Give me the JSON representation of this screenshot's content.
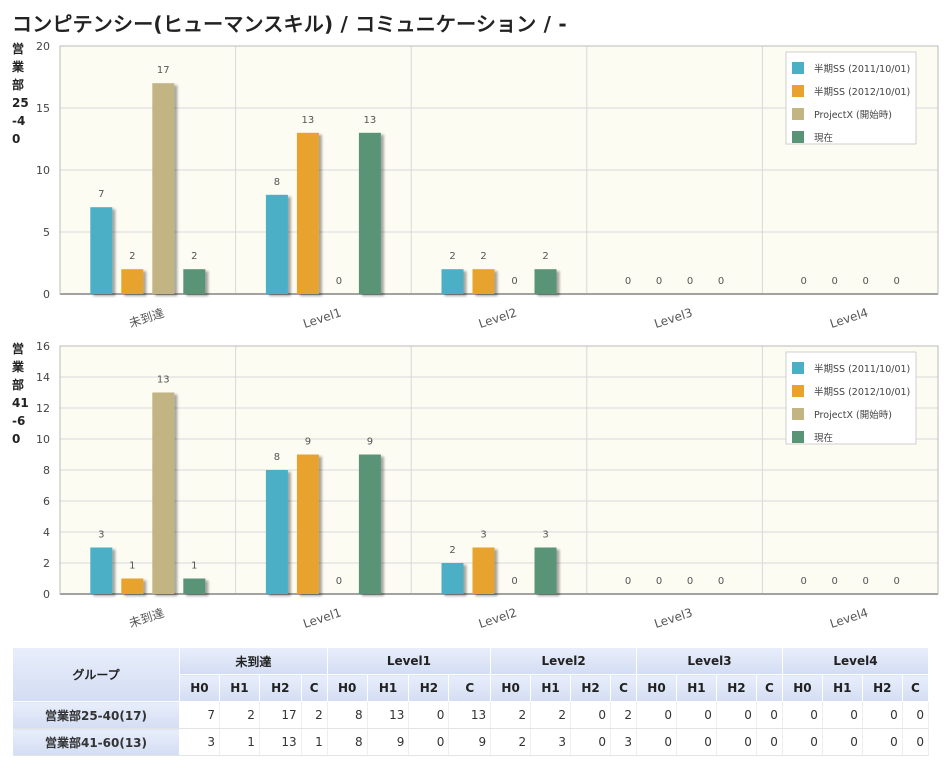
{
  "page": {
    "title": "コンピテンシー(ヒューマンスキル) / コミュニケーション / -"
  },
  "colors": {
    "h0": "#4bafc6",
    "h1": "#e8a22d",
    "h2": "#c3b483",
    "c": "#5a9477",
    "plot_bg": "#fdfcf3",
    "grid": "#d8d8d8"
  },
  "chart_data": [
    {
      "type": "bar",
      "row_label": "営業部25-40",
      "categories": [
        "未到達",
        "Level1",
        "Level2",
        "Level3",
        "Level4"
      ],
      "ylim": [
        0,
        20
      ],
      "yticks": [
        0,
        5,
        10,
        15,
        20
      ],
      "grid": true,
      "legend_position": "top-right",
      "series": [
        {
          "name": "半期SS (2011/10/01)",
          "color_key": "h0",
          "values": [
            7,
            8,
            2,
            0,
            0
          ]
        },
        {
          "name": "半期SS (2012/10/01)",
          "color_key": "h1",
          "values": [
            2,
            13,
            2,
            0,
            0
          ]
        },
        {
          "name": "ProjectX (開始時)",
          "color_key": "h2",
          "values": [
            17,
            0,
            0,
            0,
            0
          ]
        },
        {
          "name": "現在",
          "color_key": "c",
          "values": [
            2,
            13,
            2,
            0,
            0
          ]
        }
      ]
    },
    {
      "type": "bar",
      "row_label": "営業部41-60",
      "categories": [
        "未到達",
        "Level1",
        "Level2",
        "Level3",
        "Level4"
      ],
      "ylim": [
        0,
        16
      ],
      "yticks": [
        0,
        2,
        4,
        6,
        8,
        10,
        12,
        14,
        16
      ],
      "grid": true,
      "legend_position": "top-right",
      "series": [
        {
          "name": "半期SS (2011/10/01)",
          "color_key": "h0",
          "values": [
            3,
            8,
            2,
            0,
            0
          ]
        },
        {
          "name": "半期SS (2012/10/01)",
          "color_key": "h1",
          "values": [
            1,
            9,
            3,
            0,
            0
          ]
        },
        {
          "name": "ProjectX (開始時)",
          "color_key": "h2",
          "values": [
            13,
            0,
            0,
            0,
            0
          ]
        },
        {
          "name": "現在",
          "color_key": "c",
          "values": [
            1,
            9,
            3,
            0,
            0
          ]
        }
      ]
    }
  ],
  "table": {
    "group_header": "グループ",
    "levels": [
      "未到達",
      "Level1",
      "Level2",
      "Level3",
      "Level4"
    ],
    "sub_headers": [
      "H0",
      "H1",
      "H2",
      "C"
    ],
    "rows": [
      {
        "group": "営業部25-40(17)",
        "values": [
          7,
          2,
          17,
          2,
          8,
          13,
          0,
          13,
          2,
          2,
          0,
          2,
          0,
          0,
          0,
          0,
          0,
          0,
          0,
          0
        ]
      },
      {
        "group": "営業部41-60(13)",
        "values": [
          3,
          1,
          13,
          1,
          8,
          9,
          0,
          9,
          2,
          3,
          0,
          3,
          0,
          0,
          0,
          0,
          0,
          0,
          0,
          0
        ]
      }
    ]
  }
}
